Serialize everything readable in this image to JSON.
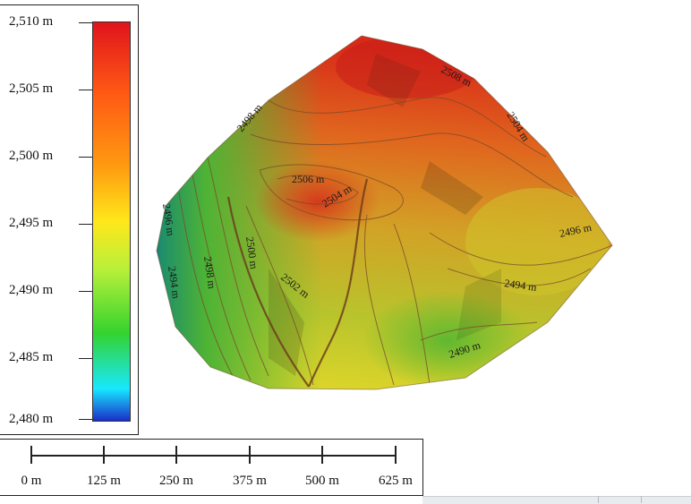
{
  "legend": {
    "labels": [
      "2,510 m",
      "2,505 m",
      "2,500 m",
      "2,495 m",
      "2,490 m",
      "2,485 m",
      "2,480 m"
    ],
    "colors": [
      "#e0141c",
      "#ff5a14",
      "#ff9a10",
      "#ffe81a",
      "#b8f03a",
      "#34d32e",
      "#18e8ff",
      "#1a2ec8"
    ]
  },
  "scale_bar": {
    "labels": [
      "0 m",
      "125 m",
      "250 m",
      "375 m",
      "500 m",
      "625 m"
    ]
  },
  "contours": {
    "labels": [
      "2508 m",
      "2504 m",
      "2498 m",
      "2506 m",
      "2504 m",
      "2496 m",
      "2500 m",
      "2498 m",
      "2494 m",
      "2496 m",
      "2502 m",
      "2494 m",
      "2490 m"
    ]
  }
}
